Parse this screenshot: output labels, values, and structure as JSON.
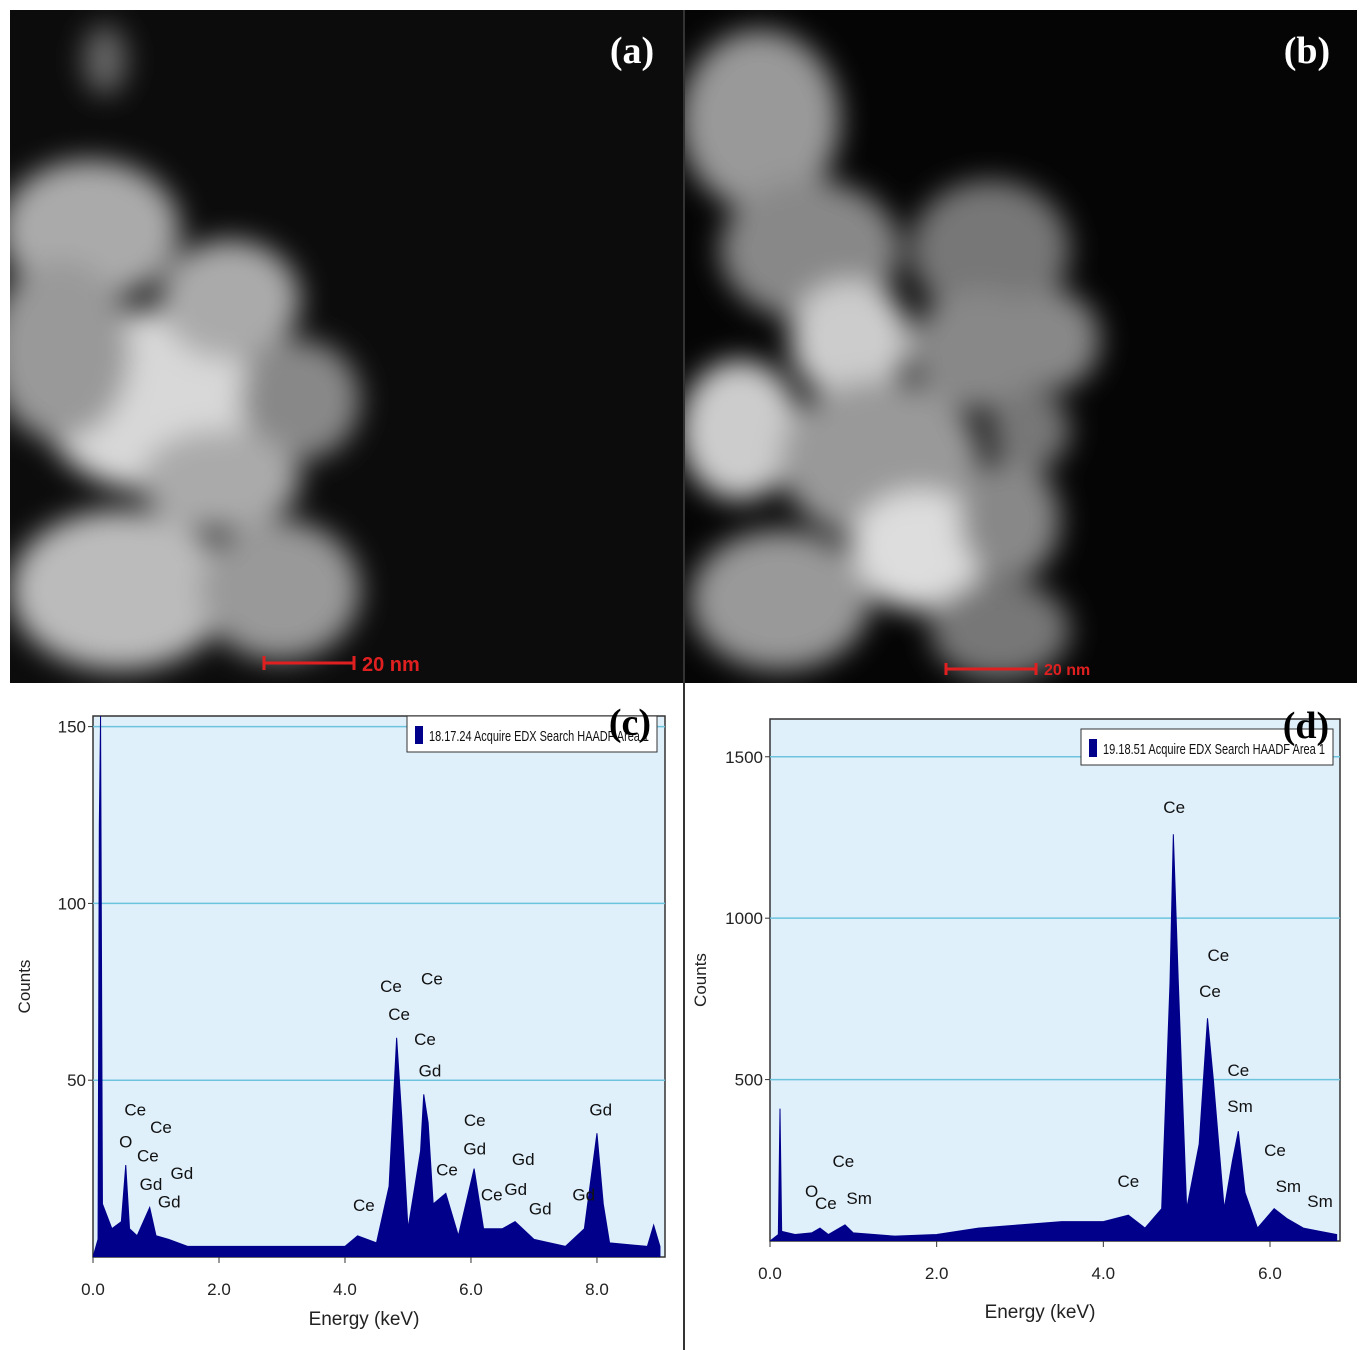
{
  "panels": [
    {
      "label": "(a)",
      "scale_bar": "20 nm"
    },
    {
      "label": "(b)",
      "scale_bar": "20 nm"
    }
  ],
  "chart_data": [
    {
      "type": "area",
      "label": "(c)",
      "xlabel": "Energy (keV)",
      "ylabel": "Counts",
      "xlim": [
        0,
        9.08
      ],
      "ylim": [
        0,
        153
      ],
      "xticks": [
        {
          "value": 0,
          "label": "0.0"
        },
        {
          "value": 2,
          "label": "2.0"
        },
        {
          "value": 4,
          "label": "4.0"
        },
        {
          "value": 6,
          "label": "6.0"
        },
        {
          "value": 8,
          "label": "8.0"
        }
      ],
      "yticks": [
        50,
        100,
        150
      ],
      "grid": true,
      "x": [
        0,
        0.08,
        0.1,
        0.12,
        0.15,
        0.3,
        0.45,
        0.52,
        0.58,
        0.7,
        0.9,
        1.0,
        1.2,
        1.5,
        2.0,
        3.0,
        4.0,
        4.2,
        4.5,
        4.7,
        4.82,
        4.9,
        5.0,
        5.2,
        5.25,
        5.32,
        5.4,
        5.6,
        5.8,
        6.05,
        6.2,
        6.5,
        6.7,
        7.0,
        7.5,
        7.8,
        8.0,
        8.1,
        8.2,
        8.8,
        8.9,
        9.0
      ],
      "series": [
        {
          "name": "18.17.24 Acquire EDX Search HAADF Area 1",
          "color": "#00008b",
          "values": [
            0,
            5,
            122,
            153,
            15,
            8,
            10,
            26,
            8,
            6,
            14,
            6,
            5,
            3,
            3,
            3,
            3,
            6,
            4,
            20,
            62,
            40,
            8,
            30,
            46,
            38,
            15,
            18,
            6,
            25,
            8,
            8,
            10,
            5,
            3,
            8,
            35,
            15,
            4,
            3,
            9,
            3
          ]
        }
      ],
      "annotations": [
        {
          "text": "O",
          "x": 0.52,
          "y": 31
        },
        {
          "text": "Ce",
          "x": 0.67,
          "y": 40
        },
        {
          "text": "Ce",
          "x": 1.08,
          "y": 35
        },
        {
          "text": "Ce",
          "x": 0.87,
          "y": 27
        },
        {
          "text": "Gd",
          "x": 0.92,
          "y": 19
        },
        {
          "text": "Gd",
          "x": 1.21,
          "y": 14
        },
        {
          "text": "Gd",
          "x": 1.41,
          "y": 22
        },
        {
          "text": "Ce",
          "x": 4.3,
          "y": 13
        },
        {
          "text": "Ce",
          "x": 4.73,
          "y": 75
        },
        {
          "text": "Ce",
          "x": 4.86,
          "y": 67
        },
        {
          "text": "Ce",
          "x": 5.38,
          "y": 77
        },
        {
          "text": "Ce",
          "x": 5.27,
          "y": 60
        },
        {
          "text": "Gd",
          "x": 5.35,
          "y": 51
        },
        {
          "text": "Ce",
          "x": 5.62,
          "y": 23
        },
        {
          "text": "Ce",
          "x": 6.06,
          "y": 37
        },
        {
          "text": "Gd",
          "x": 6.06,
          "y": 29
        },
        {
          "text": "Ce",
          "x": 6.33,
          "y": 16
        },
        {
          "text": "Gd",
          "x": 6.83,
          "y": 26
        },
        {
          "text": "Gd",
          "x": 6.71,
          "y": 17.5
        },
        {
          "text": "Gd",
          "x": 7.1,
          "y": 12
        },
        {
          "text": "Gd",
          "x": 7.79,
          "y": 16
        },
        {
          "text": "Gd",
          "x": 8.06,
          "y": 40
        }
      ]
    },
    {
      "type": "area",
      "label": "(d)",
      "xlabel": "Energy (keV)",
      "ylabel": "Counts",
      "xlim": [
        0,
        6.84
      ],
      "ylim": [
        0,
        1617
      ],
      "xticks": [
        {
          "value": 0,
          "label": "0.0"
        },
        {
          "value": 2,
          "label": "2.0"
        },
        {
          "value": 4,
          "label": "4.0"
        },
        {
          "value": 6,
          "label": "6.0"
        }
      ],
      "yticks": [
        500,
        1000,
        1500
      ],
      "grid": true,
      "x": [
        0,
        0.1,
        0.12,
        0.14,
        0.3,
        0.5,
        0.6,
        0.7,
        0.9,
        1.0,
        1.5,
        2.0,
        2.5,
        3.0,
        3.5,
        4.0,
        4.3,
        4.5,
        4.7,
        4.8,
        4.84,
        4.9,
        5.0,
        5.15,
        5.25,
        5.32,
        5.45,
        5.55,
        5.62,
        5.7,
        5.85,
        6.05,
        6.2,
        6.4,
        6.6,
        6.8
      ],
      "series": [
        {
          "name": "19.18.51 Acquire EDX Search HAADF Area 1",
          "color": "#00008b",
          "values": [
            0,
            20,
            410,
            30,
            20,
            25,
            40,
            20,
            50,
            25,
            15,
            20,
            40,
            50,
            60,
            60,
            80,
            40,
            100,
            800,
            1260,
            800,
            100,
            300,
            690,
            500,
            100,
            250,
            340,
            150,
            40,
            100,
            70,
            40,
            30,
            20
          ]
        }
      ],
      "annotations": [
        {
          "text": "O",
          "x": 0.5,
          "y": 136
        },
        {
          "text": "Ce",
          "x": 0.67,
          "y": 99
        },
        {
          "text": "Ce",
          "x": 0.88,
          "y": 229
        },
        {
          "text": "Sm",
          "x": 1.07,
          "y": 115
        },
        {
          "text": "Ce",
          "x": 4.3,
          "y": 167
        },
        {
          "text": "Ce",
          "x": 4.85,
          "y": 1326
        },
        {
          "text": "Ce",
          "x": 5.38,
          "y": 868
        },
        {
          "text": "Ce",
          "x": 5.28,
          "y": 756
        },
        {
          "text": "Ce",
          "x": 5.62,
          "y": 511
        },
        {
          "text": "Sm",
          "x": 5.64,
          "y": 400
        },
        {
          "text": "Ce",
          "x": 6.06,
          "y": 263
        },
        {
          "text": "Sm",
          "x": 6.22,
          "y": 152
        },
        {
          "text": "Sm",
          "x": 6.6,
          "y": 105
        }
      ]
    }
  ]
}
